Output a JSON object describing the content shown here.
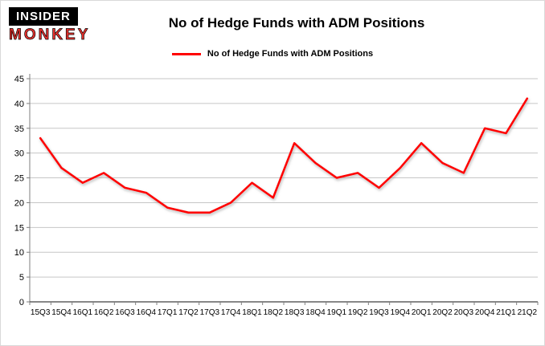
{
  "logo": {
    "line1": "INSIDER",
    "line2": "MONKEY"
  },
  "header": {
    "title": "No of Hedge Funds with ADM Positions"
  },
  "legend": {
    "label": "No of Hedge Funds with ADM Positions",
    "color": "#ff0000"
  },
  "colors": {
    "line": "#ff0000",
    "grid": "#c6c6c6",
    "axis": "#404040",
    "logo_red": "#e8322e"
  },
  "chart_data": {
    "type": "line",
    "title": "No of Hedge Funds with ADM Positions",
    "categories": [
      "15Q3",
      "15Q4",
      "16Q1",
      "16Q2",
      "16Q3",
      "16Q4",
      "17Q1",
      "17Q2",
      "17Q3",
      "17Q4",
      "18Q1",
      "18Q2",
      "18Q3",
      "18Q4",
      "19Q1",
      "19Q2",
      "19Q3",
      "19Q4",
      "20Q1",
      "20Q2",
      "20Q3",
      "20Q4",
      "21Q1",
      "21Q2"
    ],
    "values": [
      33,
      27,
      24,
      26,
      23,
      22,
      19,
      18,
      18,
      20,
      24,
      21,
      32,
      28,
      25,
      26,
      23,
      27,
      32,
      28,
      26,
      35,
      34,
      41
    ],
    "series_name": "No of Hedge Funds with ADM Positions",
    "xlabel": "",
    "ylabel": "",
    "ylim": [
      0,
      45
    ],
    "ytick_step": 5,
    "grid": true,
    "legend_position": "top",
    "line_color": "#ff0000"
  }
}
